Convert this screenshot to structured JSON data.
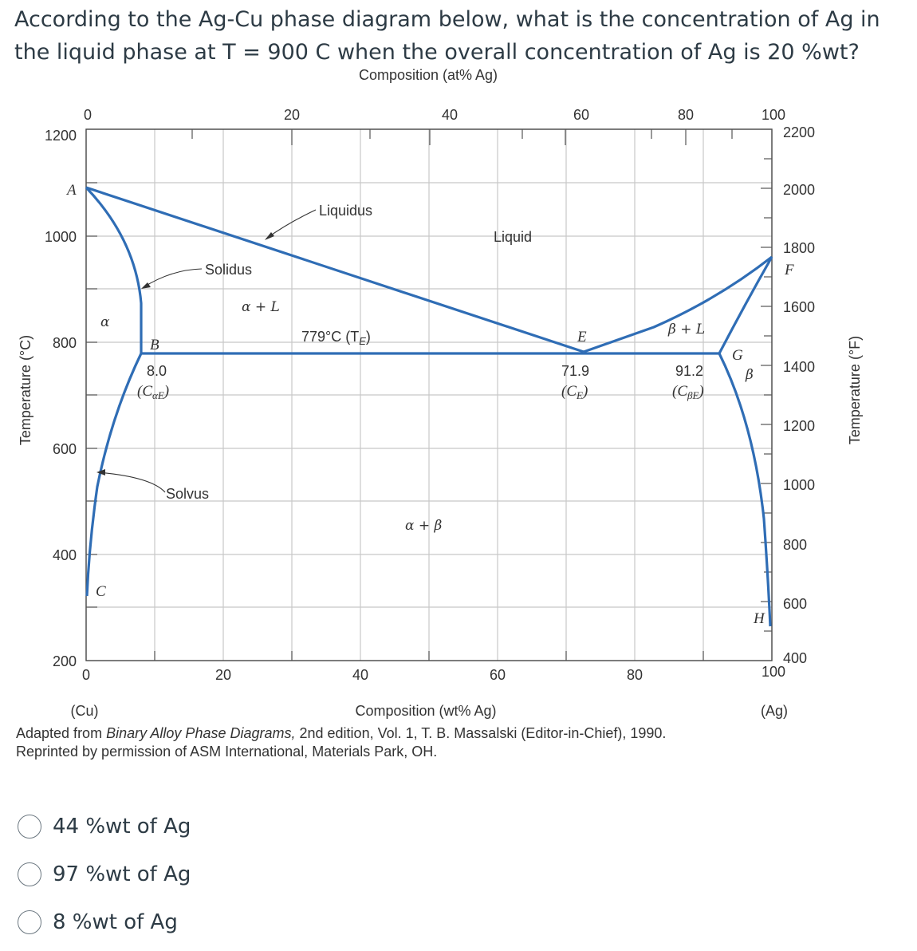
{
  "question": "According to the Ag-Cu phase diagram below, what is the concentration of Ag in the liquid phase at T = 900 C when the overall concentration of Ag is 20 %wt?",
  "diagram": {
    "top_axis_title": "Composition (at% Ag)",
    "top_ticks": [
      "0",
      "20",
      "40",
      "60",
      "80",
      "100"
    ],
    "bottom_ticks": [
      "0",
      "20",
      "40",
      "60",
      "80",
      "100"
    ],
    "bottom_axis_title": "Composition (wt% Ag)",
    "left_end_label": "(Cu)",
    "right_end_label": "(Ag)",
    "left_axis_title": "Temperature (°C)",
    "left_ticks": [
      "1200",
      "1000",
      "800",
      "600",
      "400",
      "200"
    ],
    "right_axis_title": "Temperature (°F)",
    "right_ticks": [
      "2200",
      "2000",
      "1800",
      "1600",
      "1400",
      "1200",
      "1000",
      "800",
      "600",
      "400"
    ],
    "labels": {
      "A": "A",
      "B": "B",
      "C": "C",
      "E": "E",
      "F": "F",
      "G": "G",
      "H": "H",
      "liquidus": "Liquidus",
      "solidus": "Solidus",
      "solvus": "Solvus",
      "liquid": "Liquid",
      "alpha": "α",
      "beta": "β",
      "alpha_plus_L": "α + L",
      "beta_plus_L": "β + L",
      "alpha_plus_beta": "α + β",
      "eutectic_temp": "779°C (T",
      "eutectic_temp_sub": "E",
      "eutectic_temp_close": ")",
      "c_alpha_e_value": "8.0",
      "c_e_value": "71.9",
      "c_beta_e_value": "91.2",
      "c_alpha_e_sym": "(C",
      "c_alpha_e_sub": "αE",
      "c_e_sym": "(C",
      "c_e_sub": "E",
      "c_beta_e_sym": "(C",
      "c_beta_e_sub": "βE",
      "close_paren": ")"
    },
    "key_points": {
      "eutectic_temperature_C": 779,
      "c_alpha_E_wt": 8.0,
      "c_E_wt": 71.9,
      "c_beta_E_wt": 91.2,
      "cu_melting_C": 1085,
      "ag_melting_C": 962
    }
  },
  "caption": {
    "prefix": "Adapted from ",
    "title": "Binary Alloy Phase Diagrams,",
    "suffix": " 2nd edition, Vol. 1, T. B. Massalski (Editor-in-Chief), 1990.",
    "line2": "Reprinted by permission of ASM International, Materials Park, OH."
  },
  "options": [
    "44 %wt of Ag",
    "97 %wt of Ag",
    "8 %wt of Ag"
  ],
  "colors": {
    "phase_lines": "#2f6db5",
    "text": "#2d3b45"
  }
}
